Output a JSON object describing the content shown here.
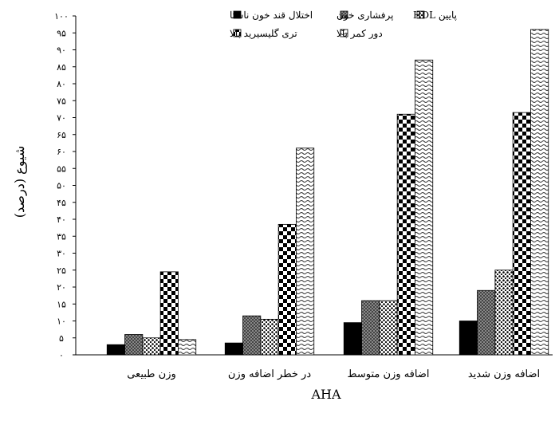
{
  "chart_data": {
    "type": "bar",
    "xlabel": "AHA",
    "ylabel": "شیوع (درصد)",
    "ylim": [
      0,
      100
    ],
    "ytick_step": 5,
    "ytick_labels": [
      "۰",
      "۵",
      "۱۰",
      "۱۵",
      "۲۰",
      "۲۵",
      "۳۰",
      "۳۵",
      "۴۰",
      "۴۵",
      "۵۰",
      "۵۵",
      "۶۰",
      "۶۵",
      "۷۰",
      "۷۵",
      "۸۰",
      "۸۵",
      "۹۰",
      "۹۵",
      "۱۰۰"
    ],
    "categories": [
      "وزن طبیعی",
      "در خطر اضافه وزن",
      "اضافه وزن متوسط",
      "اضافه وزن شدید"
    ],
    "series": [
      {
        "name": "اختلال قند خون ناشتا",
        "pattern": "solid-black",
        "values": [
          3,
          3.5,
          9.5,
          10
        ]
      },
      {
        "name": "پرفشاری خون",
        "pattern": "gray-checker",
        "values": [
          6,
          11.5,
          16,
          19
        ]
      },
      {
        "name": "پایین HDL",
        "pattern": "dots",
        "values": [
          5,
          10.5,
          16,
          25
        ]
      },
      {
        "name": "تری گلیسیرید بالا",
        "pattern": "big-checker",
        "values": [
          24.5,
          38.5,
          71,
          71.5
        ]
      },
      {
        "name": "دور کمر بالا",
        "pattern": "wavy",
        "values": [
          4.5,
          61,
          87,
          96
        ]
      }
    ],
    "legend_placement": "top"
  }
}
